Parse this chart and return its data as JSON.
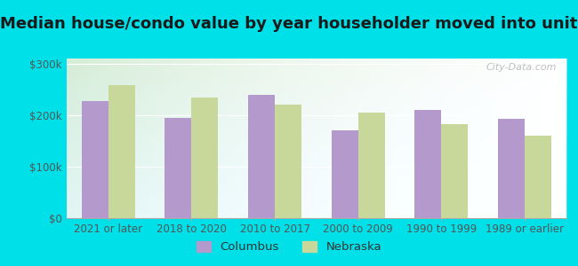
{
  "title": "Median house/condo value by year householder moved into unit",
  "categories": [
    "2021 or later",
    "2018 to 2020",
    "2010 to 2017",
    "2000 to 2009",
    "1990 to 1999",
    "1989 or earlier"
  ],
  "columbus_values": [
    228000,
    195000,
    240000,
    170000,
    210000,
    193000
  ],
  "nebraska_values": [
    258000,
    235000,
    220000,
    205000,
    183000,
    160000
  ],
  "columbus_color": "#b399cc",
  "nebraska_color": "#c8d89a",
  "background_outer": "#00e0e8",
  "background_inner_topleft": "#d8edd8",
  "background_inner_topright": "#f0f8f0",
  "background_inner_bottom": "#ffffff",
  "yticks": [
    0,
    100000,
    200000,
    300000
  ],
  "ytick_labels": [
    "$0",
    "$100k",
    "$200k",
    "$300k"
  ],
  "ylim": [
    0,
    310000
  ],
  "bar_width": 0.32,
  "legend_labels": [
    "Columbus",
    "Nebraska"
  ],
  "watermark": "City-Data.com",
  "title_fontsize": 13,
  "tick_fontsize": 8.5,
  "legend_fontsize": 9.5
}
